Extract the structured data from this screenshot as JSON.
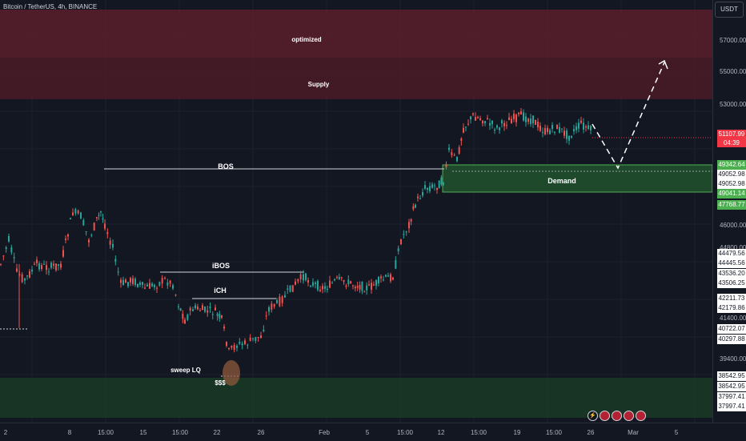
{
  "header": {
    "title": "Bitcoin / TetherUS, 4h, BINANCE",
    "currency_button": "USDT"
  },
  "annotations": {
    "optimized": "optimized",
    "supply": "Supply",
    "demand": "Demand",
    "bos": "BOS",
    "ibos": "iBOS",
    "ich": "iCH",
    "sweep": "sweep LQ",
    "dollar": "$$$"
  },
  "y_axis": {
    "ticks": [
      "57000.00",
      "55000.00",
      "53000.00",
      "46000.00",
      "44800.00",
      "41400.00",
      "39400.00"
    ],
    "current_price": "51107.99",
    "countdown": "04:39",
    "tags_white": [
      "49052.98",
      "49052.98",
      "44479.56",
      "44445.56",
      "43536.20",
      "43506.25",
      "42211.73",
      "42179.86",
      "40722.07",
      "40297.88",
      "38542.95",
      "38542.95",
      "37997.41",
      "37997.41"
    ],
    "tags_green": [
      "49342.64",
      "49041.14",
      "47768.77"
    ]
  },
  "x_axis": {
    "ticks": [
      "2",
      "8",
      "15:00",
      "15",
      "15:00",
      "22",
      "26",
      "Feb",
      "5",
      "15:00",
      "12",
      "15:00",
      "19",
      "15:00",
      "26",
      "Mar",
      "5"
    ]
  },
  "events": [
    "lightning-icon",
    "flag-icon",
    "flag-icon",
    "flag-icon",
    "flag-icon"
  ],
  "colors": {
    "up": "#26a69a",
    "down": "#ef5350",
    "supply": "#5a1f2b",
    "demand": "#1e4a2b"
  }
}
